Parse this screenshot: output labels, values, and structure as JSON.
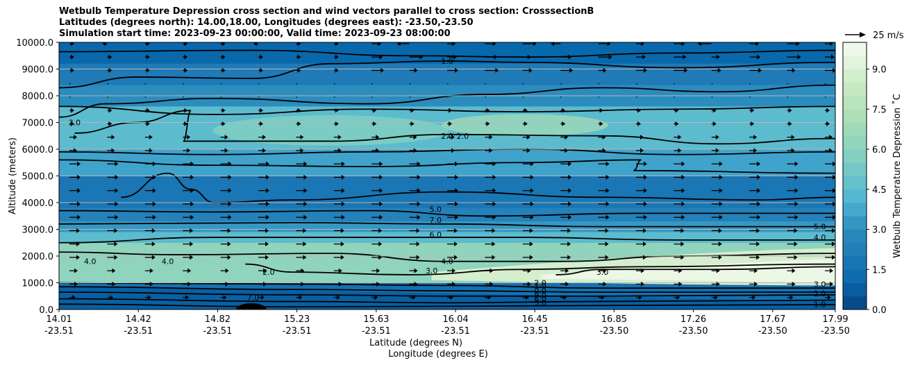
{
  "chart_data": {
    "type": "contour",
    "title_lines": [
      "Wetbulb Temperature Depression cross section and wind vectors parallel to cross section: CrosssectionB",
      "Latitudes (degrees north): 14.00,18.00, Longitudes (degrees east): -23.50,-23.50",
      "Simulation start time: 2023-09-23 00:00:00, Valid time: 2023-09-23 08:00:00"
    ],
    "ylabel": "Altitude (meters)",
    "xlabel_lat": "Latitude (degrees N)",
    "xlabel_lon": "Longitude (degrees E)",
    "ylim": [
      0,
      10000
    ],
    "yticks": [
      "0.0",
      "1000.0",
      "2000.0",
      "3000.0",
      "4000.0",
      "5000.0",
      "6000.0",
      "7000.0",
      "8000.0",
      "9000.0",
      "10000.0"
    ],
    "xtick_lat": [
      "14.01",
      "14.42",
      "14.82",
      "15.23",
      "15.63",
      "16.04",
      "16.45",
      "16.85",
      "17.26",
      "17.67",
      "17.99"
    ],
    "xtick_lon": [
      "-23.51",
      "-23.51",
      "-23.51",
      "-23.51",
      "-23.51",
      "-23.51",
      "-23.51",
      "-23.50",
      "-23.50",
      "-23.50",
      "-23.50"
    ],
    "colorbar": {
      "label": "Wetbulb Temperature Depression ˚C",
      "range": [
        0,
        10
      ],
      "ticks": [
        "0.0",
        "1.5",
        "3.0",
        "4.5",
        "6.0",
        "7.5",
        "9.0"
      ]
    },
    "quiver_key": "25 m/s",
    "contour_labels": [
      "1.0",
      "2.0",
      "3.0",
      "4.0",
      "5.0",
      "6.0",
      "7.0",
      "5.0",
      "4.0",
      "3.0",
      "2.0",
      "1.0",
      "0.0",
      "9.0",
      "6.0",
      "7.0",
      "5.0",
      "3.0",
      "2.0",
      "4.0",
      "4.0",
      "3.0",
      "2.0",
      "2.0",
      "1.0"
    ],
    "contour_levels": [
      1,
      2,
      3,
      4,
      5,
      6,
      7
    ],
    "colors": [
      "#084081",
      "#0868ac",
      "#2b8cbe",
      "#4eb3d3",
      "#7bccc4",
      "#a8ddb5",
      "#ccebc5",
      "#f7fcf0"
    ]
  }
}
